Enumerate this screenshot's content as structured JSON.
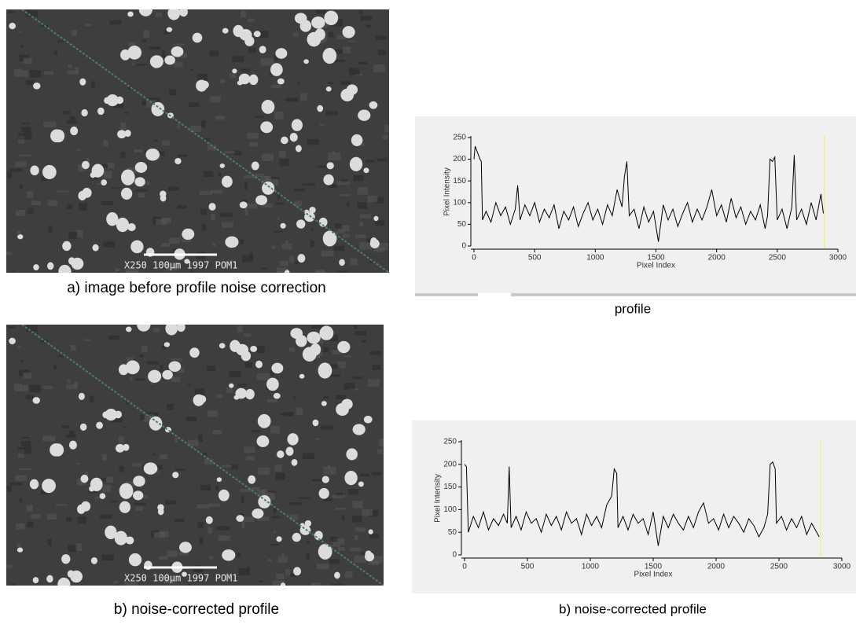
{
  "images": [
    {
      "caption": "a) image before profile noise correction",
      "scale_text": "X250  100µm  1997  POM1"
    },
    {
      "caption": "b) noise-corrected profile",
      "scale_text": "X250  100µm  1997  POM1"
    }
  ],
  "chart_data": [
    {
      "type": "line",
      "caption": "profile",
      "x_label": "Pixel Index",
      "y_label": "Pixel Intensity",
      "xlim": [
        0,
        3000
      ],
      "ylim": [
        0,
        250
      ],
      "xticks": [
        0,
        500,
        1000,
        1500,
        2000,
        2500,
        3000
      ],
      "yticks": [
        0,
        50,
        100,
        150,
        200,
        250
      ],
      "marker": {
        "x": 2890,
        "color": "#f3eea0"
      },
      "series": [
        {
          "color": "#000000",
          "x": [
            0,
            10,
            30,
            50,
            60,
            70,
            100,
            140,
            180,
            220,
            260,
            300,
            340,
            360,
            380,
            420,
            460,
            500,
            540,
            580,
            620,
            660,
            700,
            740,
            780,
            820,
            860,
            900,
            940,
            980,
            1020,
            1060,
            1100,
            1140,
            1180,
            1220,
            1240,
            1260,
            1280,
            1320,
            1360,
            1400,
            1440,
            1480,
            1520,
            1560,
            1600,
            1640,
            1680,
            1720,
            1760,
            1800,
            1840,
            1880,
            1920,
            1960,
            2000,
            2040,
            2080,
            2120,
            2160,
            2200,
            2240,
            2280,
            2320,
            2360,
            2400,
            2420,
            2440,
            2460,
            2480,
            2500,
            2540,
            2580,
            2620,
            2640,
            2660,
            2700,
            2740,
            2780,
            2820,
            2860,
            2880
          ],
          "values": [
            200,
            230,
            215,
            200,
            195,
            60,
            80,
            55,
            100,
            70,
            90,
            50,
            85,
            140,
            60,
            95,
            70,
            100,
            55,
            85,
            65,
            95,
            40,
            80,
            60,
            90,
            45,
            75,
            100,
            60,
            85,
            50,
            95,
            70,
            130,
            90,
            160,
            195,
            70,
            85,
            40,
            90,
            55,
            80,
            10,
            95,
            60,
            85,
            45,
            75,
            100,
            55,
            85,
            60,
            90,
            130,
            70,
            95,
            55,
            110,
            65,
            90,
            50,
            80,
            60,
            95,
            40,
            70,
            200,
            195,
            205,
            60,
            85,
            40,
            90,
            210,
            60,
            85,
            50,
            100,
            60,
            120,
            75
          ]
        }
      ]
    },
    {
      "type": "line",
      "caption": "b) noise-corrected profile",
      "x_label": "Pixel Index",
      "y_label": "Pixel Intensity",
      "xlim": [
        0,
        3000
      ],
      "ylim": [
        0,
        250
      ],
      "xticks": [
        0,
        500,
        1000,
        1500,
        2000,
        2500,
        3000
      ],
      "yticks": [
        0,
        50,
        100,
        150,
        200,
        250
      ],
      "marker": {
        "x": 2830,
        "color": "#f3eea0"
      },
      "series": [
        {
          "color": "#000000",
          "x": [
            0,
            15,
            30,
            70,
            110,
            150,
            190,
            230,
            270,
            310,
            340,
            355,
            370,
            410,
            450,
            490,
            530,
            570,
            610,
            650,
            690,
            730,
            770,
            810,
            850,
            890,
            930,
            970,
            1010,
            1050,
            1090,
            1130,
            1170,
            1190,
            1210,
            1220,
            1260,
            1300,
            1340,
            1380,
            1420,
            1460,
            1500,
            1540,
            1580,
            1620,
            1660,
            1700,
            1740,
            1780,
            1820,
            1860,
            1900,
            1940,
            1980,
            2020,
            2060,
            2100,
            2140,
            2180,
            2220,
            2260,
            2300,
            2340,
            2380,
            2410,
            2430,
            2450,
            2470,
            2480,
            2520,
            2560,
            2600,
            2640,
            2680,
            2720,
            2760,
            2800,
            2820
          ],
          "values": [
            200,
            195,
            50,
            85,
            60,
            95,
            55,
            80,
            65,
            90,
            70,
            195,
            60,
            85,
            55,
            95,
            70,
            80,
            50,
            90,
            65,
            85,
            55,
            95,
            70,
            80,
            45,
            90,
            65,
            85,
            60,
            110,
            130,
            190,
            180,
            60,
            85,
            55,
            90,
            70,
            80,
            45,
            95,
            20,
            85,
            60,
            90,
            70,
            55,
            85,
            60,
            95,
            115,
            70,
            80,
            55,
            90,
            60,
            85,
            70,
            50,
            80,
            65,
            40,
            60,
            90,
            200,
            205,
            190,
            70,
            85,
            55,
            80,
            60,
            85,
            45,
            70,
            50,
            40
          ]
        }
      ]
    }
  ]
}
